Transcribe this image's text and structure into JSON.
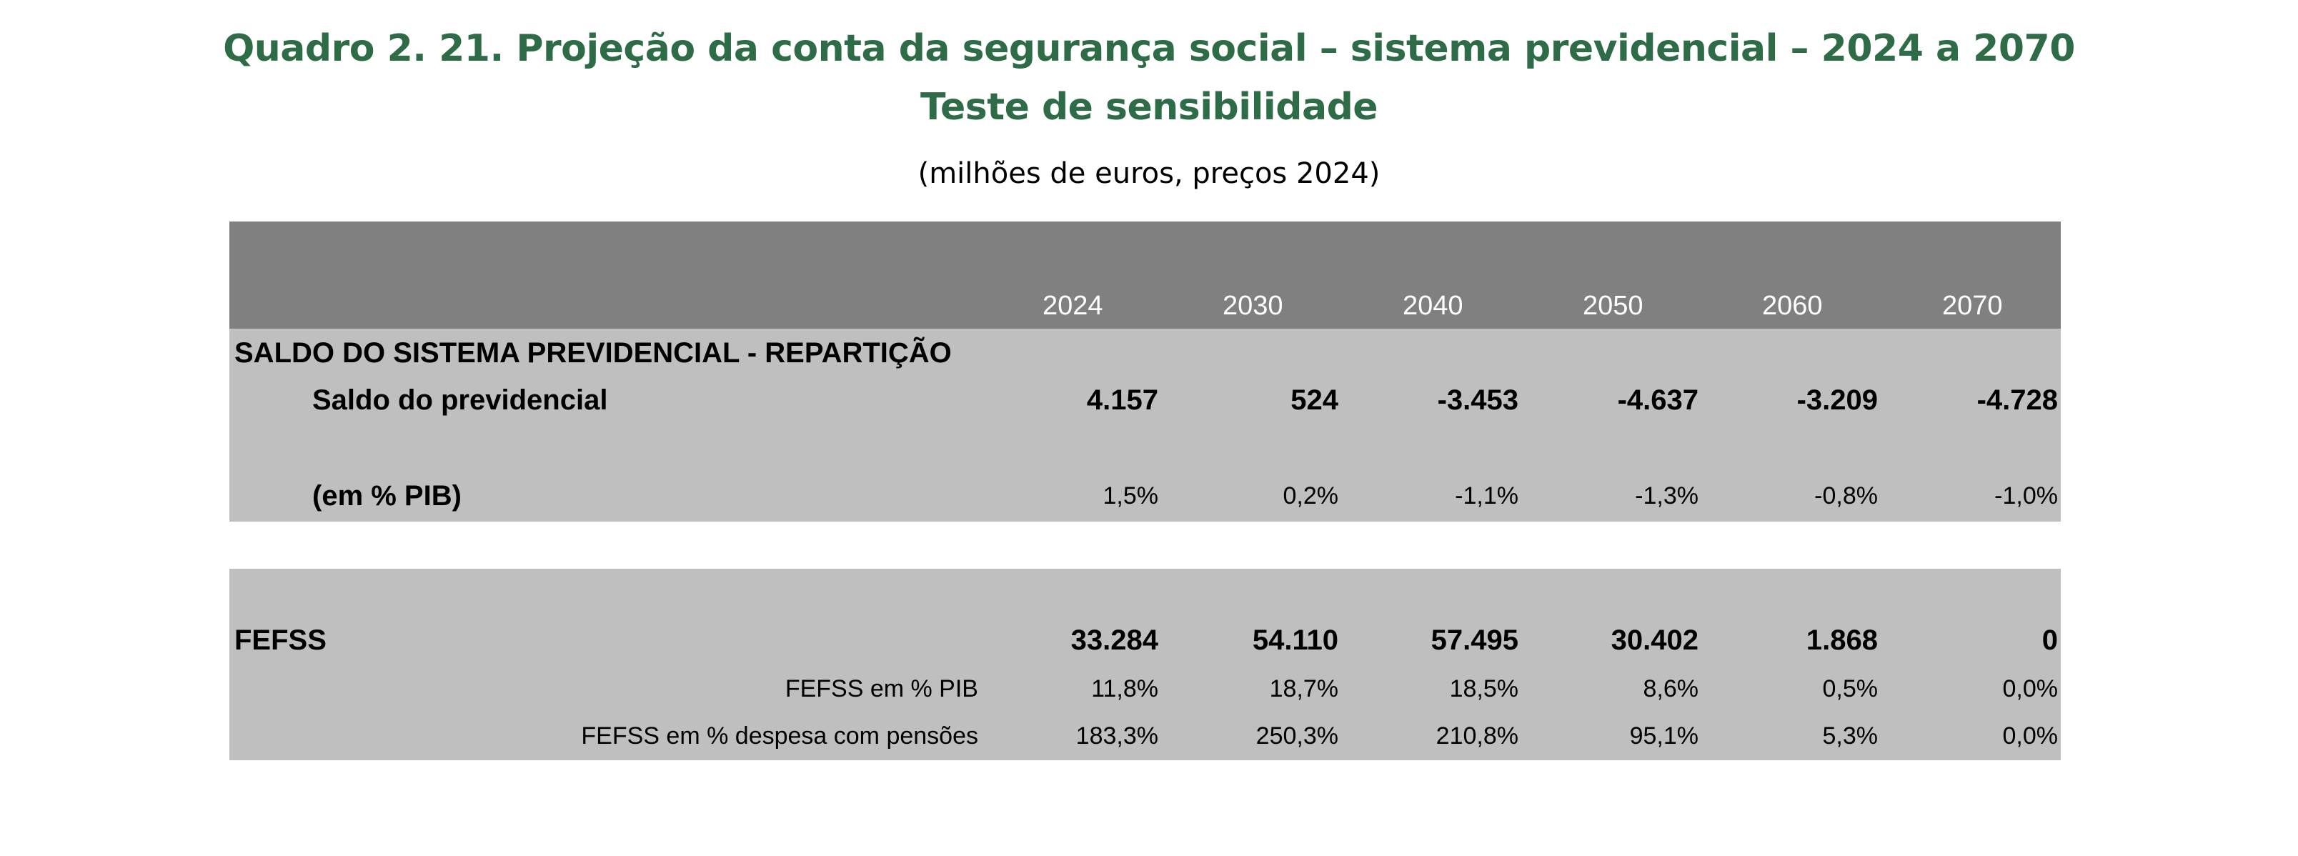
{
  "title_line1": "Quadro 2. 21. Projeção da conta da segurança social – sistema previdencial – 2024 a 2070",
  "title_line2": "Teste de sensibilidade",
  "units": "(milhões de euros, preços 2024)",
  "colors": {
    "title": "#2e6b47",
    "header_band": "#808080",
    "body_band": "#bfbfbf"
  },
  "years": [
    "2024",
    "2030",
    "2040",
    "2050",
    "2060",
    "2070"
  ],
  "section1": {
    "heading": "SALDO DO SISTEMA PREVIDENCIAL - REPARTIÇÃO",
    "saldo_label": "Saldo do previdencial",
    "saldo_values": [
      "4.157",
      "524",
      "-3.453",
      "-4.637",
      "-3.209",
      "-4.728"
    ],
    "pib_label": "(em % PIB)",
    "pib_values": [
      "1,5%",
      "0,2%",
      "-1,1%",
      "-1,3%",
      "-0,8%",
      "-1,0%"
    ]
  },
  "section2": {
    "fefss_label": "FEFSS",
    "fefss_values": [
      "33.284",
      "54.110",
      "57.495",
      "30.402",
      "1.868",
      "0"
    ],
    "pib_label": "FEFSS em % PIB",
    "pib_values": [
      "11,8%",
      "18,7%",
      "18,5%",
      "8,6%",
      "0,5%",
      "0,0%"
    ],
    "pensoes_label": "FEFSS em % despesa com pensões",
    "pensoes_values": [
      "183,3%",
      "250,3%",
      "210,8%",
      "95,1%",
      "5,3%",
      "0,0%"
    ]
  }
}
